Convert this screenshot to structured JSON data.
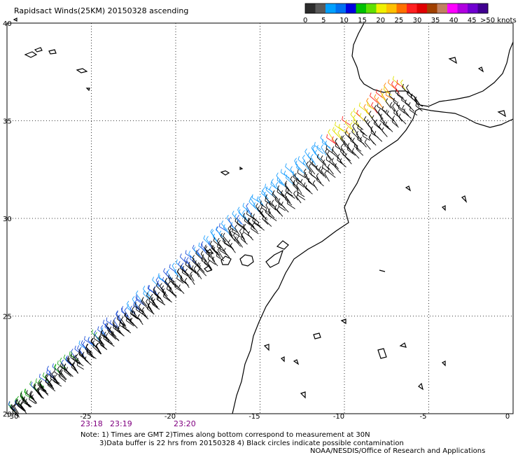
{
  "title": "Rapidsact Winds(25KM) 20150328 ascending",
  "map": {
    "lon_range": [
      -30,
      0
    ],
    "lat_range": [
      20,
      40
    ],
    "lon_ticks": [
      "-30",
      "-25",
      "-20",
      "-15",
      "-10",
      "-5",
      "0"
    ],
    "lat_ticks": [
      "20",
      "25",
      "30",
      "35",
      "40"
    ],
    "grid": true
  },
  "colorbar": {
    "labels": [
      "0",
      "5",
      "10",
      "15",
      "20",
      "25",
      "30",
      "35",
      "40",
      "45",
      ">50 knots"
    ],
    "colors": [
      "#2c2c2c",
      "#5a5a5a",
      "#00a0ff",
      "#0070f0",
      "#0000e0",
      "#00c000",
      "#60e000",
      "#f0f000",
      "#ffc000",
      "#ff7000",
      "#ff2020",
      "#e00000",
      "#a04000",
      "#c08060",
      "#ff00ff",
      "#b000e0",
      "#7000d0",
      "#400090"
    ]
  },
  "times": [
    "23:18",
    "23:19",
    "23:20"
  ],
  "notes": {
    "line1": "Note: 1) Times are GMT 2)Times along bottom correspond to measurement at 30N",
    "line2": "3)Data buffer is 22 hrs from 20150328 4) Black circles indicate possible contamination",
    "credit": "NOAA/NESDIS/Office of Research and Applications"
  },
  "wind_swath": {
    "start": {
      "lon": -29.5,
      "lat": 20.1
    },
    "end": {
      "lon": -6.5,
      "lat": 36.7
    },
    "direction": "northwest to southeast barbs",
    "speed_colors_low_to_high_along_east_edge": [
      "#22aa22",
      "#1f4fd8",
      "#1fa0ff",
      "#e0e000",
      "#ff8000",
      "#ff2020"
    ]
  },
  "icons": {
    "barbs": "wind-barb-icon",
    "coast": "coastline-icon"
  }
}
